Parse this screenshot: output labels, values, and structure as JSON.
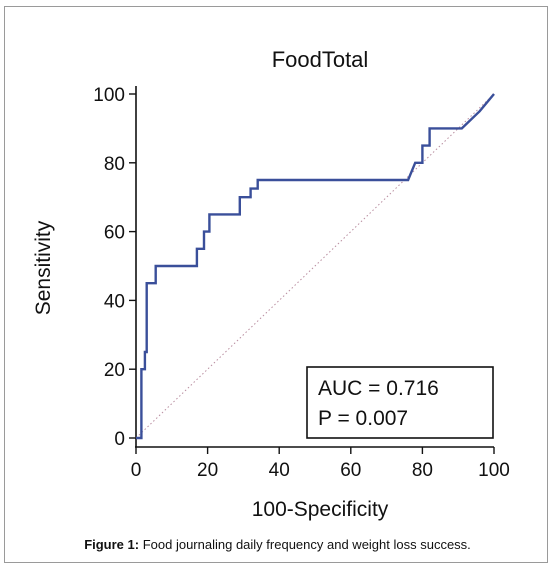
{
  "caption": {
    "label": "Figure 1:",
    "text": "Food journaling daily frequency and weight loss success."
  },
  "colors": {
    "roc_line": "#3a4f9a",
    "reference_line": "#b98ea0",
    "axis": "#111111"
  },
  "annotation": {
    "auc": "AUC = 0.716",
    "p": "P = 0.007"
  },
  "chart_data": {
    "type": "line",
    "title": "FoodTotal",
    "xlabel": "100-Specificity",
    "ylabel": "Sensitivity",
    "xlim": [
      0,
      100
    ],
    "ylim": [
      0,
      100
    ],
    "xticks": [
      "0",
      "20",
      "40",
      "60",
      "80",
      "100"
    ],
    "yticks": [
      "0",
      "20",
      "40",
      "60",
      "80",
      "100"
    ],
    "grid": false,
    "series": [
      {
        "name": "",
        "style": "solid",
        "x": [
          0,
          1.5,
          1.5,
          2.5,
          2.5,
          3,
          3,
          5.5,
          5.5,
          17,
          17,
          19,
          19,
          20.5,
          20.5,
          29,
          29,
          32,
          32,
          34,
          34,
          76,
          78,
          78,
          80,
          80,
          82,
          82,
          91,
          96,
          100
        ],
        "y": [
          0,
          0,
          20,
          20,
          25,
          25,
          45,
          45,
          50,
          50,
          55,
          55,
          60,
          60,
          65,
          65,
          70,
          70,
          72.5,
          72.5,
          75,
          75,
          80,
          80,
          80,
          85,
          85,
          90,
          90,
          95,
          100
        ]
      },
      {
        "name": "",
        "style": "dotted",
        "x": [
          0,
          100
        ],
        "y": [
          0,
          100
        ]
      }
    ]
  }
}
